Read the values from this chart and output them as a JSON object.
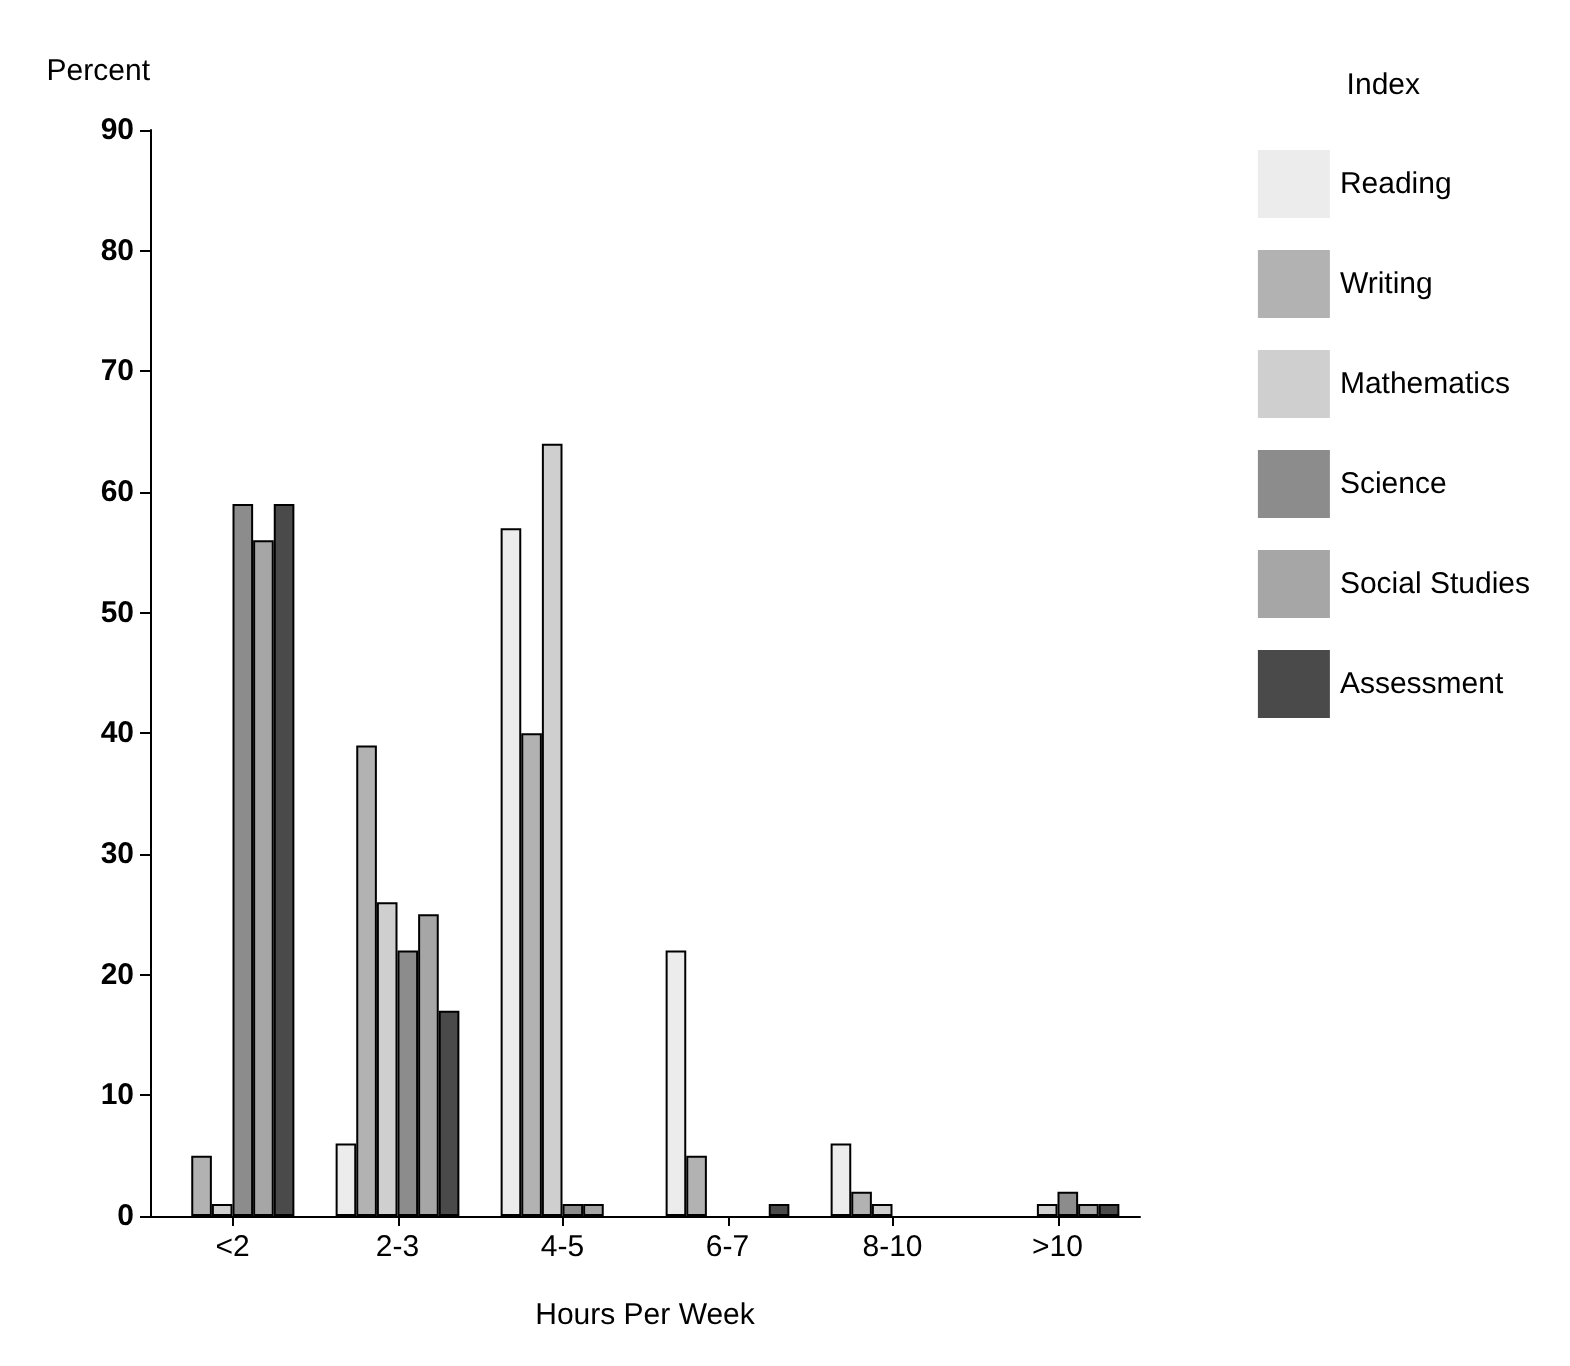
{
  "chart_data": {
    "type": "bar",
    "ylabel": "Percent",
    "xlabel": "Hours Per Week",
    "legend_title": "Index",
    "legend": "right",
    "grid": false,
    "categories": [
      "<2",
      "2-3",
      "4-5",
      "6-7",
      "8-10",
      ">10"
    ],
    "ylim": [
      0,
      90
    ],
    "yticks": [
      0,
      10,
      20,
      30,
      40,
      50,
      60,
      70,
      80,
      90
    ],
    "series": [
      {
        "name": "Reading",
        "color": "#ececec",
        "values": [
          0,
          6,
          57,
          22,
          6,
          0
        ]
      },
      {
        "name": "Writing",
        "color": "#b2b2b2",
        "values": [
          5,
          39,
          40,
          5,
          2,
          0
        ]
      },
      {
        "name": "Mathematics",
        "color": "#cfcfcf",
        "values": [
          1,
          26,
          64,
          0,
          1,
          1
        ]
      },
      {
        "name": "Science",
        "color": "#8c8c8c",
        "values": [
          59,
          22,
          1,
          0,
          0,
          2
        ]
      },
      {
        "name": "Social Studies",
        "color": "#a6a6a6",
        "values": [
          56,
          25,
          1,
          0,
          0,
          1
        ]
      },
      {
        "name": "Assessment",
        "color": "#4a4a4a",
        "values": [
          59,
          17,
          0,
          1,
          0,
          1
        ]
      }
    ]
  }
}
